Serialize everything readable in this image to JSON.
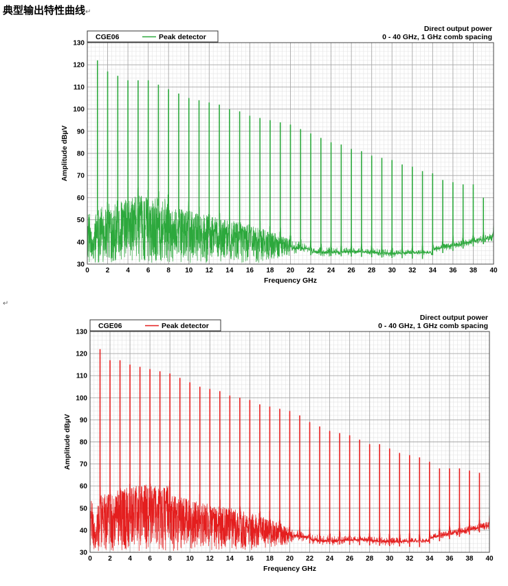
{
  "title": "典型输出特性曲线",
  "return_mark": "↵",
  "chart_data": [
    {
      "type": "line",
      "legend_label": "CGE06",
      "series": [
        {
          "name": "Peak detector",
          "color": "#2ca83c",
          "comb_peaks": [
            {
              "x": 1,
              "y": 122
            },
            {
              "x": 2,
              "y": 117
            },
            {
              "x": 3,
              "y": 115
            },
            {
              "x": 4,
              "y": 113
            },
            {
              "x": 5,
              "y": 113
            },
            {
              "x": 6,
              "y": 113
            },
            {
              "x": 7,
              "y": 111
            },
            {
              "x": 8,
              "y": 109
            },
            {
              "x": 9,
              "y": 107
            },
            {
              "x": 10,
              "y": 105
            },
            {
              "x": 11,
              "y": 104
            },
            {
              "x": 12,
              "y": 103
            },
            {
              "x": 13,
              "y": 102
            },
            {
              "x": 14,
              "y": 100
            },
            {
              "x": 15,
              "y": 99
            },
            {
              "x": 16,
              "y": 97
            },
            {
              "x": 17,
              "y": 96
            },
            {
              "x": 18,
              "y": 95
            },
            {
              "x": 19,
              "y": 94
            },
            {
              "x": 20,
              "y": 93
            },
            {
              "x": 21,
              "y": 91
            },
            {
              "x": 22,
              "y": 89
            },
            {
              "x": 23,
              "y": 87
            },
            {
              "x": 24,
              "y": 85
            },
            {
              "x": 25,
              "y": 84
            },
            {
              "x": 26,
              "y": 82
            },
            {
              "x": 27,
              "y": 81
            },
            {
              "x": 28,
              "y": 79
            },
            {
              "x": 29,
              "y": 78
            },
            {
              "x": 30,
              "y": 77
            },
            {
              "x": 31,
              "y": 75
            },
            {
              "x": 32,
              "y": 74
            },
            {
              "x": 33,
              "y": 72
            },
            {
              "x": 34,
              "y": 71
            },
            {
              "x": 35,
              "y": 68
            },
            {
              "x": 36,
              "y": 67
            },
            {
              "x": 37,
              "y": 66
            },
            {
              "x": 38,
              "y": 66
            },
            {
              "x": 39,
              "y": 60
            }
          ]
        }
      ],
      "annotation_lines": [
        "Direct output power",
        "0 - 40 GHz, 1 GHz comb spacing"
      ],
      "xlabel": "Frequency GHz",
      "ylabel": "Amplitude dBµV",
      "xlim": [
        0,
        40
      ],
      "ylim": [
        30,
        130
      ],
      "xticks": [
        "0",
        "2",
        "4",
        "6",
        "8",
        "10",
        "12",
        "14",
        "16",
        "18",
        "20",
        "22",
        "24",
        "26",
        "28",
        "30",
        "32",
        "34",
        "36",
        "38",
        "40"
      ],
      "yticks": [
        "30",
        "40",
        "50",
        "60",
        "70",
        "80",
        "90",
        "100",
        "110",
        "120",
        "130"
      ],
      "grid": true,
      "legend_position": "top-left"
    },
    {
      "type": "line",
      "legend_label": "CGE06",
      "series": [
        {
          "name": "Peak detector",
          "color": "#e41e1e",
          "comb_peaks": [
            {
              "x": 1,
              "y": 122
            },
            {
              "x": 2,
              "y": 117
            },
            {
              "x": 3,
              "y": 117
            },
            {
              "x": 4,
              "y": 115
            },
            {
              "x": 5,
              "y": 114
            },
            {
              "x": 6,
              "y": 113
            },
            {
              "x": 7,
              "y": 112
            },
            {
              "x": 8,
              "y": 111
            },
            {
              "x": 9,
              "y": 109
            },
            {
              "x": 10,
              "y": 107
            },
            {
              "x": 11,
              "y": 105
            },
            {
              "x": 12,
              "y": 104
            },
            {
              "x": 13,
              "y": 103
            },
            {
              "x": 14,
              "y": 101
            },
            {
              "x": 15,
              "y": 100
            },
            {
              "x": 16,
              "y": 99
            },
            {
              "x": 17,
              "y": 97
            },
            {
              "x": 18,
              "y": 96
            },
            {
              "x": 19,
              "y": 95
            },
            {
              "x": 20,
              "y": 94
            },
            {
              "x": 21,
              "y": 92
            },
            {
              "x": 22,
              "y": 89
            },
            {
              "x": 23,
              "y": 87
            },
            {
              "x": 24,
              "y": 85
            },
            {
              "x": 25,
              "y": 84
            },
            {
              "x": 26,
              "y": 83
            },
            {
              "x": 27,
              "y": 81
            },
            {
              "x": 28,
              "y": 79
            },
            {
              "x": 29,
              "y": 79
            },
            {
              "x": 30,
              "y": 77
            },
            {
              "x": 31,
              "y": 75
            },
            {
              "x": 32,
              "y": 74
            },
            {
              "x": 33,
              "y": 73
            },
            {
              "x": 34,
              "y": 71
            },
            {
              "x": 35,
              "y": 68
            },
            {
              "x": 36,
              "y": 68
            },
            {
              "x": 37,
              "y": 68
            },
            {
              "x": 38,
              "y": 67
            },
            {
              "x": 39,
              "y": 66
            }
          ]
        }
      ],
      "annotation_lines": [
        "Direct output power",
        "0 - 40 GHz, 1 GHz comb spacing"
      ],
      "xlabel": "Frequency GHz",
      "ylabel": "Amplitude dBµV",
      "xlim": [
        0,
        40
      ],
      "ylim": [
        30,
        130
      ],
      "xticks": [
        "0",
        "2",
        "4",
        "6",
        "8",
        "10",
        "12",
        "14",
        "16",
        "18",
        "20",
        "22",
        "24",
        "26",
        "28",
        "30",
        "32",
        "34",
        "36",
        "38",
        "40"
      ],
      "yticks": [
        "30",
        "40",
        "50",
        "60",
        "70",
        "80",
        "90",
        "100",
        "110",
        "120",
        "130"
      ],
      "grid": true,
      "legend_position": "top-left"
    }
  ]
}
